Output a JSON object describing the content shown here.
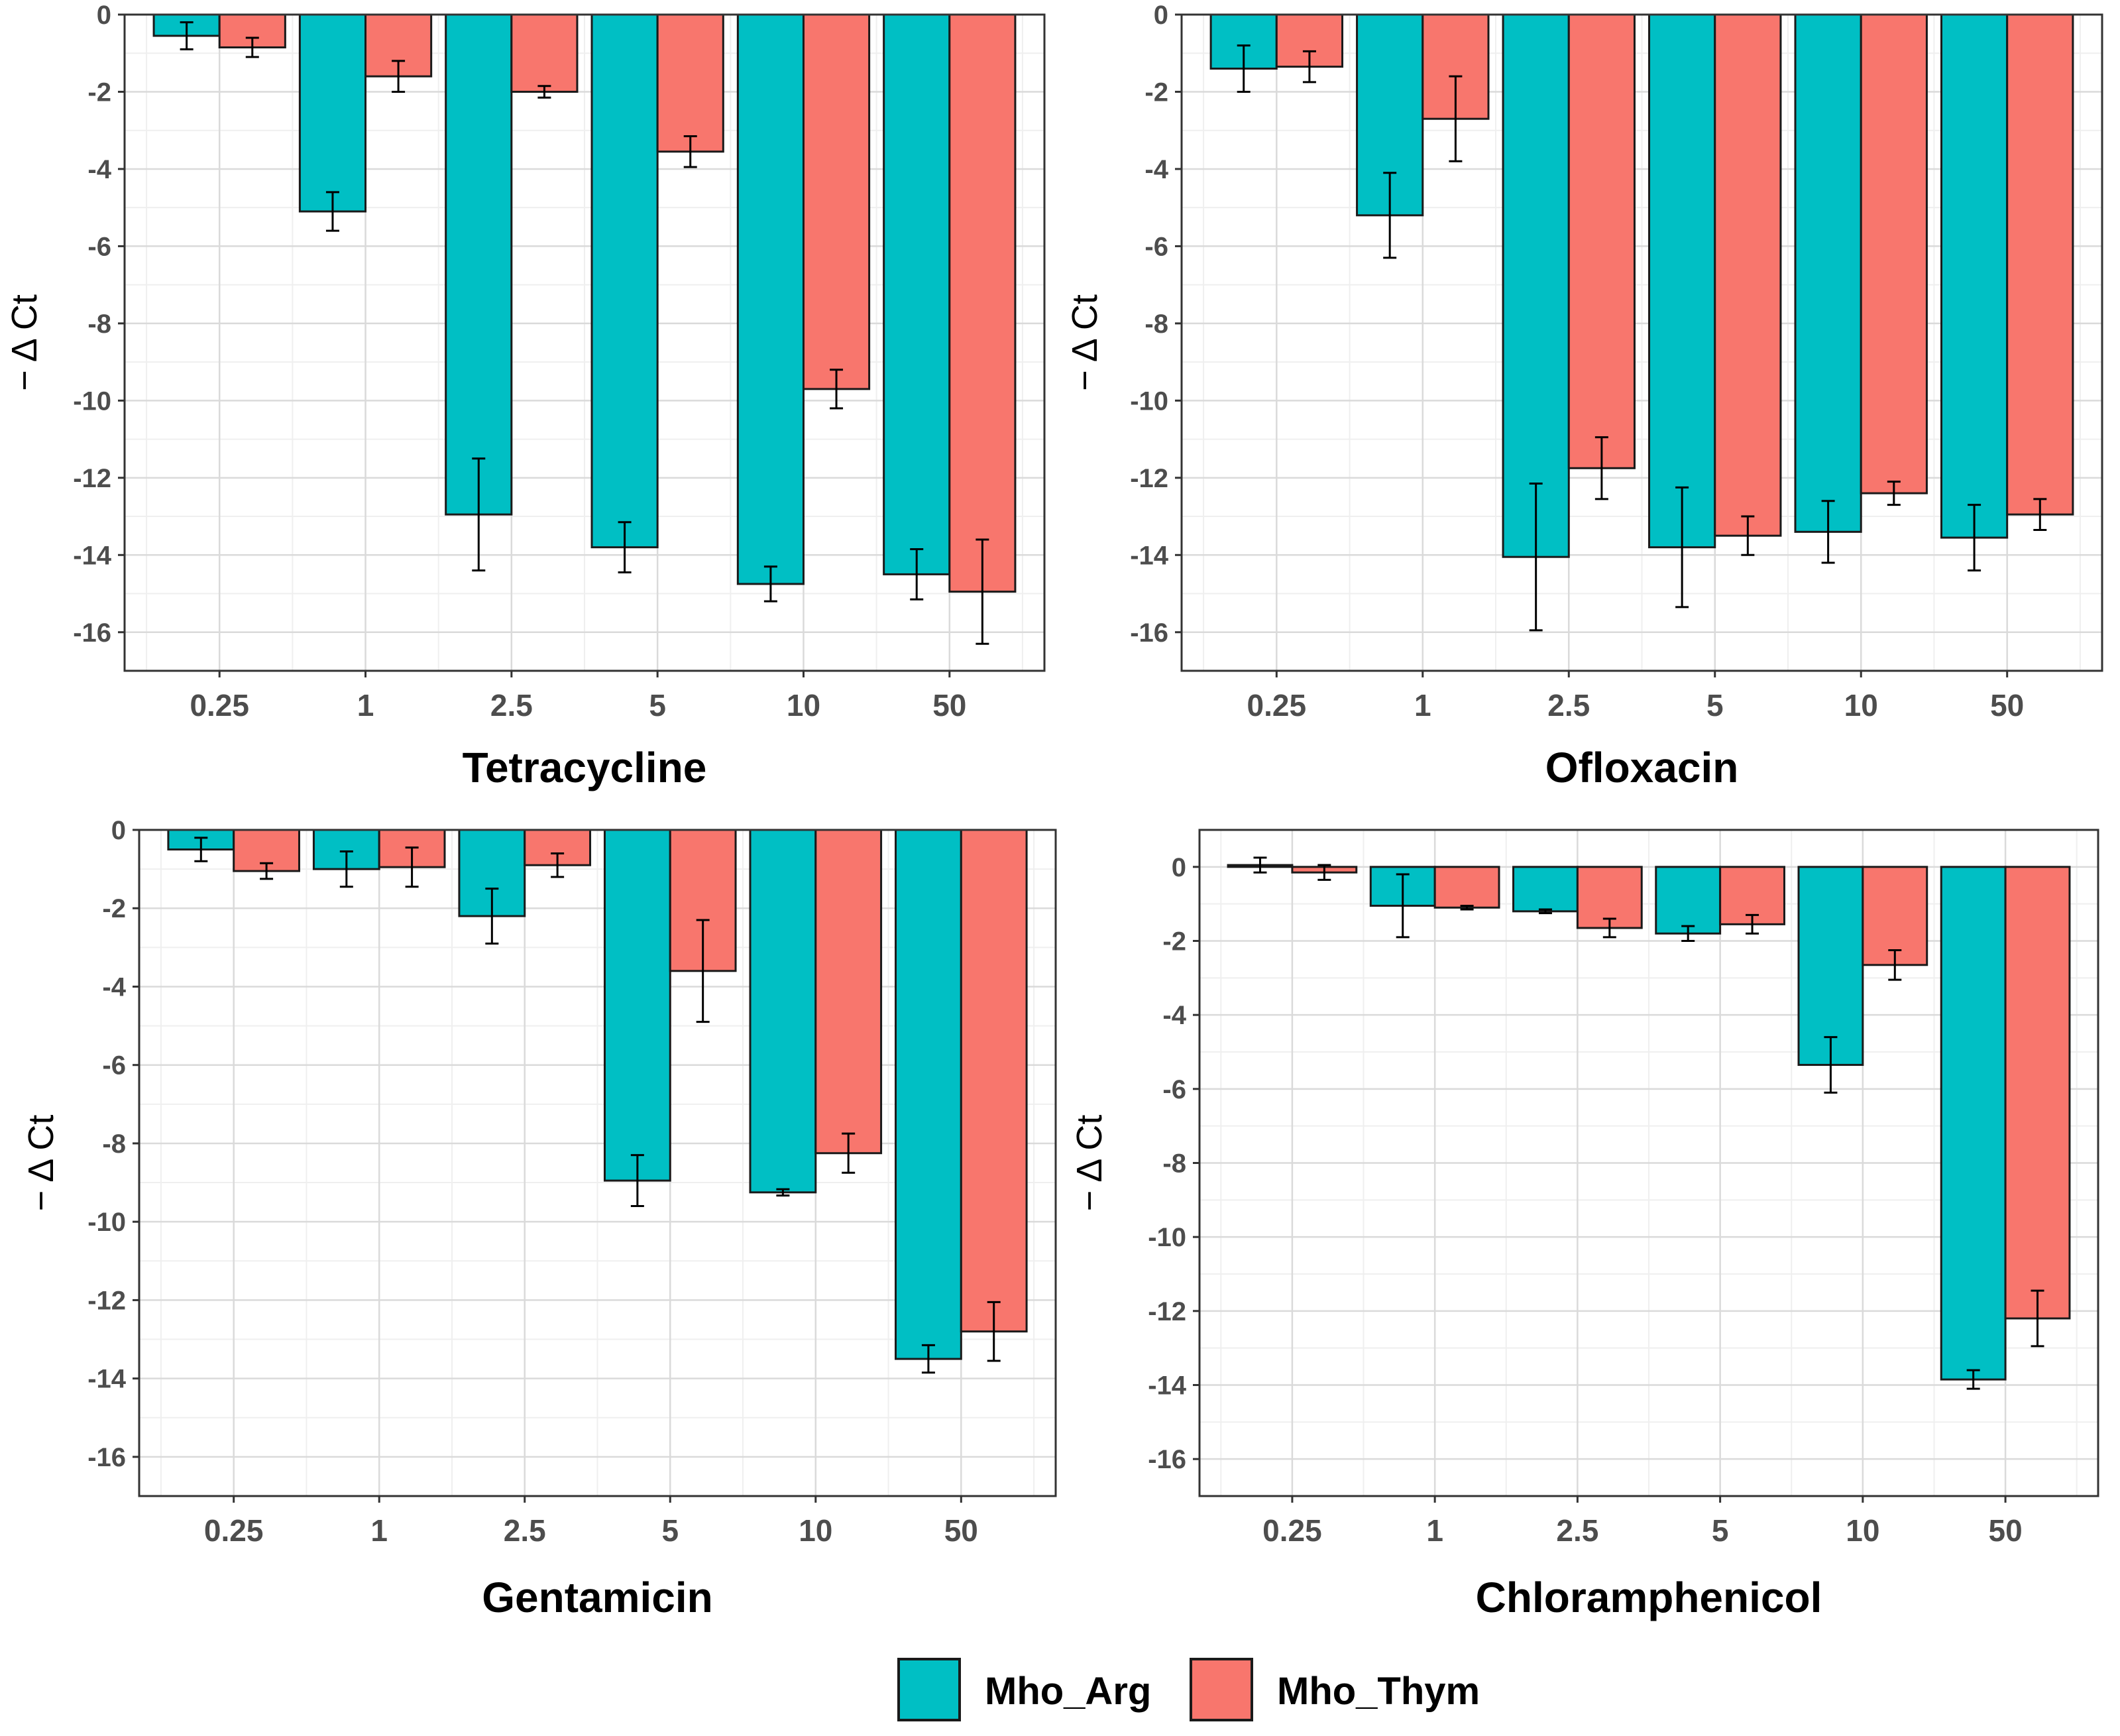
{
  "figure": {
    "colors": {
      "series1": "#00BFC4",
      "series2": "#F8766D",
      "bar_stroke": "#1a1a1a",
      "grid_major": "#dadada",
      "grid_minor": "#efefef",
      "tick_text": "#4d4d4d"
    },
    "legend": {
      "position": "bottom-center",
      "items": [
        "Mho_Arg",
        "Mho_Thym"
      ]
    }
  },
  "chart_data": [
    {
      "type": "bar",
      "title": "Tetracycline",
      "ylabel": "− Δ Ct",
      "xlabel": "",
      "categories": [
        "0.25",
        "1",
        "2.5",
        "5",
        "10",
        "50"
      ],
      "ylim": [
        -17,
        0
      ],
      "yticks": [
        0,
        -2,
        -4,
        -6,
        -8,
        -10,
        -12,
        -14,
        -16
      ],
      "ytick_labels": [
        "0",
        "-2",
        "-4",
        "-6",
        "-8",
        "-10",
        "-12",
        "-14",
        "-16"
      ],
      "grid": true,
      "series": [
        {
          "name": "Mho_Arg",
          "values": [
            -0.55,
            -5.1,
            -12.95,
            -13.8,
            -14.75,
            -14.5
          ],
          "errors": [
            0.35,
            0.5,
            1.45,
            0.65,
            0.45,
            0.65
          ]
        },
        {
          "name": "Mho_Thym",
          "values": [
            -0.85,
            -1.6,
            -2.0,
            -3.55,
            -9.7,
            -14.95
          ],
          "errors": [
            0.25,
            0.4,
            0.15,
            0.4,
            0.5,
            1.35
          ]
        }
      ]
    },
    {
      "type": "bar",
      "title": "Ofloxacin",
      "ylabel": "− Δ Ct",
      "xlabel": "",
      "categories": [
        "0.25",
        "1",
        "2.5",
        "5",
        "10",
        "50"
      ],
      "ylim": [
        -17,
        0
      ],
      "yticks": [
        0,
        -2,
        -4,
        -6,
        -8,
        -10,
        -12,
        -14,
        -16
      ],
      "ytick_labels": [
        "0",
        "-2",
        "-4",
        "-6",
        "-8",
        "-10",
        "-12",
        "-14",
        "-16"
      ],
      "grid": true,
      "series": [
        {
          "name": "Mho_Arg",
          "values": [
            -1.4,
            -5.2,
            -14.05,
            -13.8,
            -13.4,
            -13.55
          ],
          "errors": [
            0.6,
            1.1,
            1.9,
            1.55,
            0.8,
            0.85
          ]
        },
        {
          "name": "Mho_Thym",
          "values": [
            -1.35,
            -2.7,
            -11.75,
            -13.5,
            -12.4,
            -12.95
          ],
          "errors": [
            0.4,
            1.1,
            0.8,
            0.5,
            0.3,
            0.4
          ]
        }
      ]
    },
    {
      "type": "bar",
      "title": "Gentamicin",
      "ylabel": "− Δ Ct",
      "xlabel": "",
      "categories": [
        "0.25",
        "1",
        "2.5",
        "5",
        "10",
        "50"
      ],
      "ylim": [
        -17,
        0
      ],
      "yticks": [
        0,
        -2,
        -4,
        -6,
        -8,
        -10,
        -12,
        -14,
        -16
      ],
      "ytick_labels": [
        "0",
        "-2",
        "-4",
        "-6",
        "-8",
        "-10",
        "-12",
        "-14",
        "-16"
      ],
      "grid": true,
      "series": [
        {
          "name": "Mho_Arg",
          "values": [
            -0.5,
            -1.0,
            -2.2,
            -8.95,
            -9.25,
            -13.5
          ],
          "errors": [
            0.3,
            0.45,
            0.7,
            0.65,
            0.08,
            0.35
          ]
        },
        {
          "name": "Mho_Thym",
          "values": [
            -1.05,
            -0.95,
            -0.9,
            -3.6,
            -8.25,
            -12.8
          ],
          "errors": [
            0.2,
            0.5,
            0.3,
            1.3,
            0.5,
            0.75
          ]
        }
      ]
    },
    {
      "type": "bar",
      "title": "Chloramphenicol",
      "ylabel": "− Δ Ct",
      "xlabel": "",
      "categories": [
        "0.25",
        "1",
        "2.5",
        "5",
        "10",
        "50"
      ],
      "ylim": [
        -17,
        1
      ],
      "yticks": [
        0,
        -2,
        -4,
        -6,
        -8,
        -10,
        -12,
        -14,
        -16
      ],
      "ytick_labels": [
        "0",
        "-2",
        "-4",
        "-6",
        "-8",
        "-10",
        "-12",
        "-14",
        "-16"
      ],
      "grid": true,
      "series": [
        {
          "name": "Mho_Arg",
          "values": [
            0.05,
            -1.05,
            -1.2,
            -1.8,
            -5.35,
            -13.85
          ],
          "errors": [
            0.2,
            0.85,
            0.05,
            0.2,
            0.75,
            0.25
          ]
        },
        {
          "name": "Mho_Thym",
          "values": [
            -0.15,
            -1.1,
            -1.65,
            -1.55,
            -2.65,
            -12.2
          ],
          "errors": [
            0.2,
            0.05,
            0.25,
            0.25,
            0.4,
            0.75
          ]
        }
      ]
    }
  ]
}
